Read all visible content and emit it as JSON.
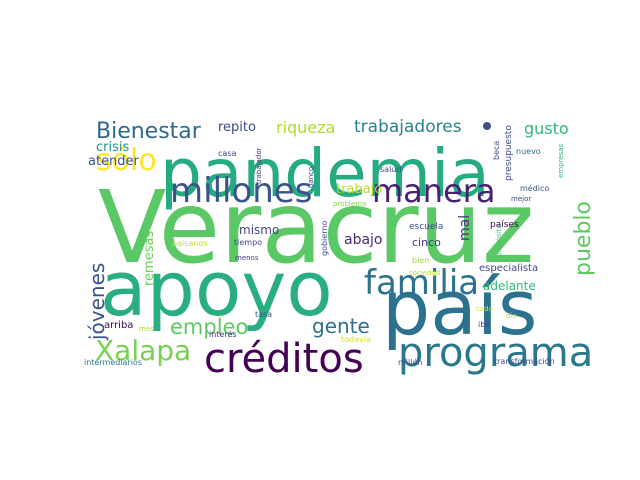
{
  "words": [
    {
      "text": "Veracruz",
      "color": "#5ac864",
      "vertical": false
    },
    {
      "text": "pandemia",
      "color": "#25ab82",
      "vertical": false
    },
    {
      "text": "apoyo",
      "color": "#28ae80",
      "vertical": false
    },
    {
      "text": "país",
      "color": "#2c728e",
      "vertical": false
    },
    {
      "text": "créditos",
      "color": "#440154",
      "vertical": false
    },
    {
      "text": "programa",
      "color": "#2a788e",
      "vertical": false
    },
    {
      "text": "millones",
      "color": "#3b528b",
      "vertical": false
    },
    {
      "text": "manera",
      "color": "#482173",
      "vertical": false
    },
    {
      "text": "familia",
      "color": "#2c728e",
      "vertical": false
    },
    {
      "text": "Xalapa",
      "color": "#7ad151",
      "vertical": false
    },
    {
      "text": "sólo",
      "color": "#fde725",
      "vertical": false
    },
    {
      "text": "Bienestar",
      "color": "#31688e",
      "vertical": false
    },
    {
      "text": "empleo",
      "color": "#5ec962",
      "vertical": false
    },
    {
      "text": "gente",
      "color": "#2d708e",
      "vertical": false
    },
    {
      "text": "jóvenes",
      "color": "#3b528b",
      "vertical": true
    },
    {
      "text": "pueblo",
      "color": "#5ec962",
      "vertical": true
    },
    {
      "text": "trabajadores",
      "color": "#26828e",
      "vertical": false
    },
    {
      "text": "riqueza",
      "color": "#addc30",
      "vertical": false
    },
    {
      "text": "repito",
      "color": "#3e4989",
      "vertical": false
    },
    {
      "text": "gusto",
      "color": "#35b779",
      "vertical": false
    },
    {
      "text": "crisis",
      "color": "#21918c",
      "vertical": false
    },
    {
      "text": "atender",
      "color": "#3b528b",
      "vertical": false
    },
    {
      "text": "trabajo",
      "color": "#b5de2b",
      "vertical": false
    },
    {
      "text": "mismo",
      "color": "#414487",
      "vertical": false
    },
    {
      "text": "abajo",
      "color": "#482878",
      "vertical": false
    },
    {
      "text": "mal",
      "color": "#46337f",
      "vertical": true
    },
    {
      "text": "remesas",
      "color": "#6ccd5a",
      "vertical": true
    },
    {
      "text": "adelante",
      "color": "#35b779",
      "vertical": false
    },
    {
      "text": "especialista",
      "color": "#3e4989",
      "vertical": false
    },
    {
      "text": "cinco",
      "color": "#453781",
      "vertical": false
    },
    {
      "text": "escuela",
      "color": "#3b528b",
      "vertical": false
    },
    {
      "text": "países",
      "color": "#440154",
      "vertical": false
    },
    {
      "text": "bien",
      "color": "#a0da39",
      "vertical": false
    },
    {
      "text": "sociedad",
      "color": "#c2df23",
      "vertical": false
    },
    {
      "text": "cada",
      "color": "#dae319",
      "vertical": false
    },
    {
      "text": "iba",
      "color": "#3e4989",
      "vertical": false
    },
    {
      "text": "dio",
      "color": "#c8e020",
      "vertical": false
    },
    {
      "text": "todavía",
      "color": "#d5e21a",
      "vertical": false
    },
    {
      "text": "millón",
      "color": "#3b528b",
      "vertical": false
    },
    {
      "text": "transformación",
      "color": "#3e4989",
      "vertical": false
    },
    {
      "text": "intermediarios",
      "color": "#2a788e",
      "vertical": false
    },
    {
      "text": "arriba",
      "color": "#440154",
      "vertical": false
    },
    {
      "text": "mes",
      "color": "#a8db34",
      "vertical": false
    },
    {
      "text": "interés",
      "color": "#472d7b",
      "vertical": false
    },
    {
      "text": "menos",
      "color": "#414487",
      "vertical": false
    },
    {
      "text": "tasa",
      "color": "#3b528b",
      "vertical": false
    },
    {
      "text": "paisanos",
      "color": "#c2df23",
      "vertical": false
    },
    {
      "text": "tiempo",
      "color": "#3e4989",
      "vertical": false
    },
    {
      "text": "gobierno",
      "color": "#3b528b",
      "vertical": true
    },
    {
      "text": "casa",
      "color": "#3e4989",
      "vertical": false
    },
    {
      "text": "trabajador",
      "color": "#472d7b",
      "vertical": true
    },
    {
      "text": "banco",
      "color": "#3e4989",
      "vertical": true
    },
    {
      "text": "salud",
      "color": "#414487",
      "vertical": false
    },
    {
      "text": "problema",
      "color": "#86d549",
      "vertical": false
    },
    {
      "text": "beca",
      "color": "#3b528b",
      "vertical": true
    },
    {
      "text": "presupuesto",
      "color": "#3e4989",
      "vertical": true
    },
    {
      "text": "nuevo",
      "color": "#31688e",
      "vertical": false
    },
    {
      "text": "empresas",
      "color": "#35b779",
      "vertical": true
    },
    {
      "text": "médico",
      "color": "#3b528b",
      "vertical": false
    },
    {
      "text": "mejor",
      "color": "#3e4989",
      "vertical": false
    },
    {
      "text": "propósito",
      "color": "#4ac16d",
      "vertical": true
    },
    {
      "text": "dot",
      "color": "#3b528b",
      "vertical": false
    }
  ]
}
